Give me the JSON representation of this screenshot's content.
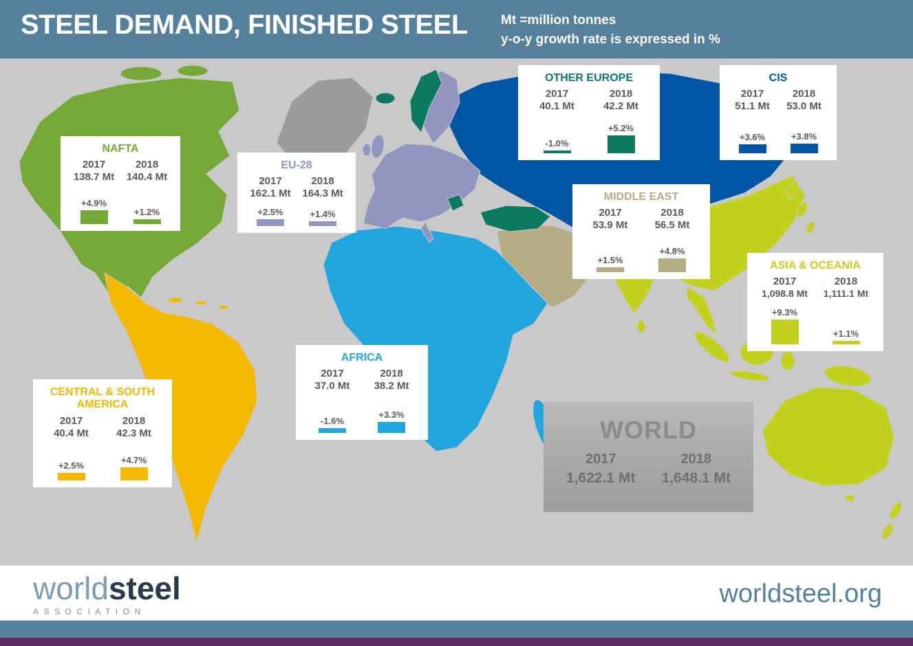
{
  "header": {
    "title": "STEEL DEMAND, FINISHED STEEL",
    "note_line1": "Mt =million tonnes",
    "note_line2": "y-o-y growth rate is expressed in %"
  },
  "map": {
    "background": "#c9c9c9",
    "greenland_color": "#9c9c9c"
  },
  "regions": [
    {
      "name": "NAFTA",
      "color": "#76a837",
      "year1": "2017",
      "year2": "2018",
      "value1": "138.7 Mt",
      "value2": "140.4 Mt",
      "growth1": "+4.9%",
      "growth2": "+1.2%",
      "bar1": 20,
      "bar2": 7
    },
    {
      "name": "EU-28",
      "color": "#9195c0",
      "year1": "2017",
      "year2": "2018",
      "value1": "162.1 Mt",
      "value2": "164.3 Mt",
      "growth1": "+2.5%",
      "growth2": "+1.4%",
      "bar1": 10,
      "bar2": 7
    },
    {
      "name": "OTHER EUROPE",
      "color": "#0b7a5f",
      "year1": "2017",
      "year2": "2018",
      "value1": "40.1 Mt",
      "value2": "42.2 Mt",
      "growth1": "-1.0%",
      "growth2": "+5.2%",
      "bar1": 4,
      "bar2": 26
    },
    {
      "name": "CIS",
      "color": "#0056a4",
      "year1": "2017",
      "year2": "2018",
      "value1": "51.1 Mt",
      "value2": "53.0 Mt",
      "growth1": "+3.6%",
      "growth2": "+3.8%",
      "bar1": 13,
      "bar2": 14
    },
    {
      "name": "MIDDLE EAST",
      "color": "#b3ac85",
      "year1": "2017",
      "year2": "2018",
      "value1": "53.9 Mt",
      "value2": "56.5 Mt",
      "growth1": "+1.5%",
      "growth2": "+4.8%",
      "bar1": 7,
      "bar2": 20
    },
    {
      "name": "ASIA & OCEANIA",
      "color": "#c2d11f",
      "year1": "2017",
      "year2": "2018",
      "value1": "1,098.8 Mt",
      "value2": "1,111.1 Mt",
      "growth1": "+9.3%",
      "growth2": "+1.1%",
      "bar1": 36,
      "bar2": 5
    },
    {
      "name": "AFRICA",
      "color": "#23a5de",
      "year1": "2017",
      "year2": "2018",
      "value1": "37.0 Mt",
      "value2": "38.2 Mt",
      "growth1": "-1.6%",
      "growth2": "+3.3%",
      "bar1": 7,
      "bar2": 16
    },
    {
      "name": "CENTRAL & SOUTH AMERICA",
      "color": "#f3b800",
      "year1": "2017",
      "year2": "2018",
      "value1": "40.4 Mt",
      "value2": "42.3 Mt",
      "growth1": "+2.5%",
      "growth2": "+4.7%",
      "bar1": 11,
      "bar2": 19
    }
  ],
  "world": {
    "name": "WORLD",
    "year1": "2017",
    "year2": "2018",
    "value1": "1,622.1 Mt",
    "value2": "1,648.1 Mt"
  },
  "footer": {
    "logo_world": "world",
    "logo_steel": "steel",
    "logo_sub": "ASSOCIATION",
    "website": "worldsteel.org"
  },
  "chart_data": {
    "type": "bar",
    "title": "STEEL DEMAND, FINISHED STEEL",
    "unit": "Mt = million tonnes; y-o-y growth rate is expressed in %",
    "categories": [
      "NAFTA",
      "EU-28",
      "OTHER EUROPE",
      "CIS",
      "MIDDLE EAST",
      "ASIA & OCEANIA",
      "AFRICA",
      "CENTRAL & SOUTH AMERICA",
      "WORLD"
    ],
    "series": [
      {
        "name": "2017 demand (Mt)",
        "values": [
          138.7,
          162.1,
          40.1,
          51.1,
          53.9,
          1098.8,
          37.0,
          40.4,
          1622.1
        ]
      },
      {
        "name": "2018 demand (Mt)",
        "values": [
          140.4,
          164.3,
          42.2,
          53.0,
          56.5,
          1111.1,
          38.2,
          42.3,
          1648.1
        ]
      },
      {
        "name": "2017 y-o-y growth (%)",
        "values": [
          4.9,
          2.5,
          -1.0,
          3.6,
          1.5,
          9.3,
          -1.6,
          2.5,
          null
        ]
      },
      {
        "name": "2018 y-o-y growth (%)",
        "values": [
          1.2,
          1.4,
          5.2,
          3.8,
          4.8,
          1.1,
          3.3,
          4.7,
          null
        ]
      }
    ],
    "region_colors": {
      "NAFTA": "#76a837",
      "EU-28": "#9195c0",
      "OTHER EUROPE": "#0b7a5f",
      "CIS": "#0056a4",
      "MIDDLE EAST": "#b3ac85",
      "ASIA & OCEANIA": "#c2d11f",
      "AFRICA": "#23a5de",
      "CENTRAL & SOUTH AMERICA": "#f3b800"
    },
    "layout": "choropleth world map with per-region callout cards; each card shows 2017/2018 demand and growth bars"
  }
}
